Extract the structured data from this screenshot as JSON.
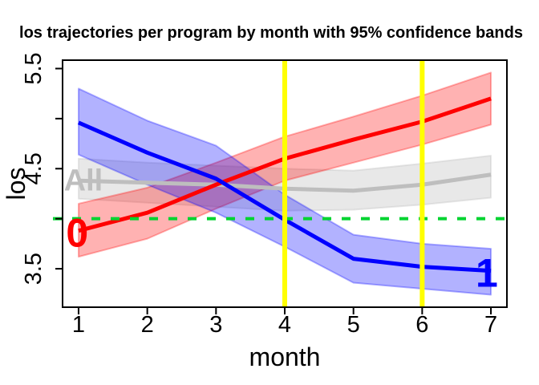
{
  "figure": {
    "title": "los trajectories per program by month with 95% confidence bands",
    "x_axis": {
      "label": "month"
    },
    "y_axis": {
      "label": "los"
    }
  },
  "chart_data": {
    "type": "line",
    "title": "los trajectories per program by month with 95% confidence bands",
    "xlabel": "month",
    "ylabel": "los",
    "grid": false,
    "legend_position": "none",
    "x": [
      1,
      2,
      3,
      4,
      5,
      6,
      7
    ],
    "xlim": [
      0.767,
      7.233
    ],
    "ylim": [
      3.116,
      5.584
    ],
    "x_ticks": [
      {
        "value": 1,
        "label": "1"
      },
      {
        "value": 2,
        "label": "2"
      },
      {
        "value": 3,
        "label": "3"
      },
      {
        "value": 4,
        "label": "4"
      },
      {
        "value": 5,
        "label": "5"
      },
      {
        "value": 6,
        "label": "6"
      },
      {
        "value": 7,
        "label": "7"
      }
    ],
    "y_ticks": [
      {
        "value": 3.5,
        "label": "3.5"
      },
      {
        "value": 4.0,
        "label": ""
      },
      {
        "value": 4.5,
        "label": "4.5"
      },
      {
        "value": 5.0,
        "label": ""
      },
      {
        "value": 5.5,
        "label": "5.5"
      }
    ],
    "series": [
      {
        "name": "program-0",
        "inline_label": "0",
        "label_pos": {
          "x": 0.98,
          "y": 3.86
        },
        "color": "#FF0000",
        "band_color": "rgba(255,0,0,0.30)",
        "values": [
          3.88,
          4.06,
          4.34,
          4.6,
          4.79,
          4.97,
          5.2
        ],
        "lower": [
          3.62,
          3.8,
          4.1,
          4.38,
          4.56,
          4.74,
          4.94
        ],
        "upper": [
          4.15,
          4.31,
          4.56,
          4.82,
          5.02,
          5.23,
          5.46
        ]
      },
      {
        "name": "program-1",
        "inline_label": "1",
        "label_pos": {
          "x": 6.94,
          "y": 3.46
        },
        "color": "#0000FF",
        "band_color": "rgba(0,0,255,0.30)",
        "values": [
          4.96,
          4.66,
          4.4,
          3.99,
          3.6,
          3.52,
          3.48
        ],
        "lower": [
          4.64,
          4.34,
          4.06,
          3.72,
          3.36,
          3.3,
          3.24
        ],
        "upper": [
          5.3,
          4.98,
          4.73,
          4.24,
          3.84,
          3.75,
          3.7
        ]
      },
      {
        "name": "all-programs",
        "inline_label": "All",
        "label_pos": {
          "x": 1.07,
          "y": 4.39
        },
        "color": "#BEBEBE",
        "band_color": "rgba(190,190,190,0.35)",
        "values": [
          4.38,
          4.36,
          4.34,
          4.3,
          4.28,
          4.34,
          4.44
        ],
        "lower": [
          4.2,
          4.16,
          4.12,
          4.08,
          4.09,
          4.14,
          4.21
        ],
        "upper": [
          4.6,
          4.56,
          4.53,
          4.5,
          4.48,
          4.55,
          4.63
        ]
      }
    ],
    "reference_lines": [
      {
        "orientation": "horizontal",
        "value": 4.0,
        "color": "#00D430",
        "style": "dashed"
      },
      {
        "orientation": "vertical",
        "value": 4,
        "color": "#FFFF00",
        "style": "solid"
      },
      {
        "orientation": "vertical",
        "value": 6,
        "color": "#FFFF00",
        "style": "solid"
      }
    ]
  }
}
